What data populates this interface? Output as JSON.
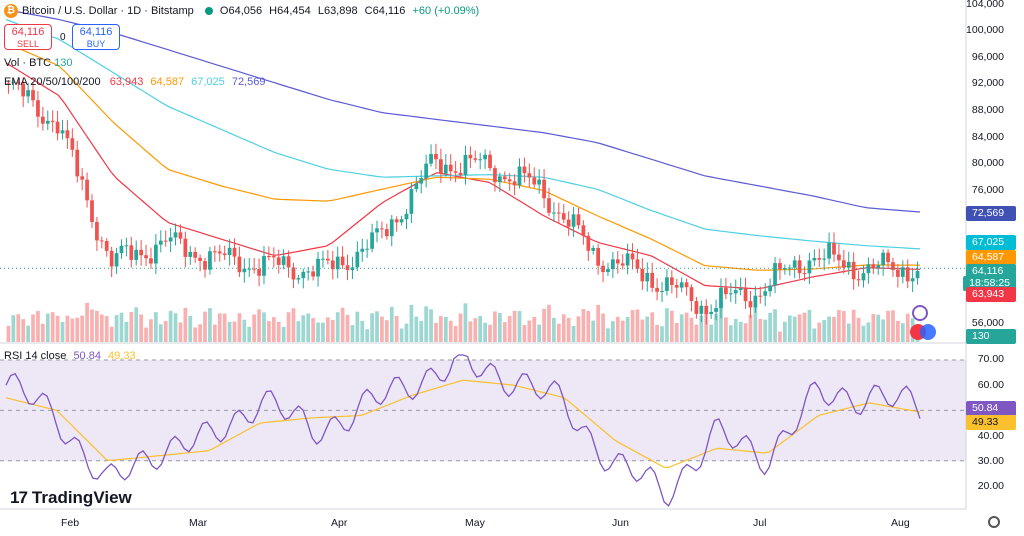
{
  "header": {
    "symbol_title": "Bitcoin / U.S. Dollar · 1D · Bitstamp",
    "open": "O64,056",
    "high": "H64,454",
    "low": "L63,898",
    "close": "C64,116",
    "change": "+60 (+0.09%)",
    "symbol_icon": "bitcoin-icon"
  },
  "trade": {
    "sell_price": "64,116",
    "sell_label": "SELL",
    "buy_price": "64,116",
    "buy_label": "BUY",
    "spread": "0"
  },
  "indicators": {
    "vol_label": "Vol · BTC",
    "vol_value": "130",
    "ema_label": "EMA 20/50/100/200",
    "ema20": "63,943",
    "ema50": "64,587",
    "ema100": "67,025",
    "ema200": "72,569",
    "rsi_label": "RSI 14 close",
    "rsi_value": "50.84",
    "rsi_ma": "49.33"
  },
  "price_axis": [
    "104,000",
    "100,000",
    "96,000",
    "92,000",
    "88,000",
    "84,000",
    "80,000",
    "76,000",
    "56,000"
  ],
  "price_tags": {
    "ema200": "72,569",
    "ema100": "67,025",
    "ema50": "64,587",
    "last": "64,116",
    "countdown": "18:58:25",
    "ema20": "63,943",
    "volume": "130"
  },
  "rsi_axis": [
    "70.00",
    "60.00",
    "40.00",
    "30.00",
    "20.00"
  ],
  "rsi_tags": {
    "rsi": "50.84",
    "ma": "49.33"
  },
  "time_axis": [
    "Feb",
    "Mar",
    "Apr",
    "May",
    "Jun",
    "Jul",
    "Aug"
  ],
  "branding": "TradingView",
  "colors": {
    "up": "#26a69a",
    "down": "#ef5350",
    "ema20": "#f23645",
    "ema50": "#ff9800",
    "ema100": "#4dd0e1",
    "ema200": "#5b5bd6",
    "rsi": "#7e57c2",
    "rsi_ma": "#fbc02d",
    "rsi_band": "#ede7f6"
  },
  "chart_data": [
    {
      "type": "line",
      "title": "Bitcoin / U.S. Dollar · 1D · Bitstamp",
      "x": [
        "Jan 20",
        "Feb 1",
        "Feb 15",
        "Mar 1",
        "Mar 15",
        "Apr 1",
        "Apr 15",
        "May 1",
        "May 10",
        "May 20",
        "Jun 1",
        "Jun 8",
        "Jun 20",
        "Jul 1",
        "Jul 10",
        "Jul 20",
        "Aug 1",
        "Aug 6"
      ],
      "series": [
        {
          "name": "EMA 20",
          "values": [
            95000,
            90000,
            78000,
            71000,
            68500,
            66000,
            67500,
            74000,
            78500,
            77000,
            72000,
            68000,
            66000,
            61500,
            61000,
            62800,
            64200,
            63943
          ]
        },
        {
          "name": "EMA 50",
          "values": [
            98000,
            94500,
            86000,
            79000,
            76500,
            74500,
            74200,
            76000,
            77800,
            77500,
            75800,
            72000,
            68500,
            64500,
            63800,
            64000,
            64600,
            64587
          ]
        },
        {
          "name": "EMA 100",
          "values": [
            101500,
            98500,
            93500,
            88500,
            85000,
            81500,
            79000,
            77800,
            78000,
            78200,
            77800,
            76000,
            72800,
            70000,
            69000,
            68200,
            67500,
            67025
          ]
        },
        {
          "name": "EMA 200",
          "values": [
            103000,
            101500,
            99500,
            97000,
            94500,
            92000,
            89500,
            87500,
            86500,
            85500,
            84500,
            83000,
            80500,
            78000,
            76500,
            75000,
            73200,
            72569
          ]
        },
        {
          "name": "Close",
          "values": [
            92000,
            86000,
            65000,
            68000,
            65500,
            64500,
            63800,
            68500,
            80000,
            79500,
            76000,
            66000,
            63000,
            58500,
            60500,
            66000,
            64000,
            64116
          ]
        }
      ],
      "ylim": [
        54000,
        104000
      ]
    },
    {
      "type": "line",
      "title": "RSI 14 close",
      "x": [
        "Jan 20",
        "Feb 1",
        "Feb 8",
        "Feb 15",
        "Mar 1",
        "Mar 15",
        "Apr 1",
        "Apr 15",
        "May 1",
        "May 10",
        "May 20",
        "Jun 1",
        "Jun 8",
        "Jun 20",
        "Jul 1",
        "Jul 10",
        "Jul 20",
        "Aug 1",
        "Aug 6"
      ],
      "series": [
        {
          "name": "RSI",
          "values": [
            60,
            48,
            20,
            35,
            38,
            55,
            42,
            50,
            62,
            68,
            63,
            52,
            28,
            18,
            40,
            32,
            56,
            56,
            50.84
          ]
        },
        {
          "name": "MA",
          "values": [
            55,
            50,
            30,
            32,
            34,
            45,
            47,
            48,
            56,
            62,
            60,
            55,
            38,
            27,
            35,
            33,
            48,
            53,
            49.33
          ]
        }
      ],
      "ylim": [
        10,
        75
      ]
    }
  ]
}
